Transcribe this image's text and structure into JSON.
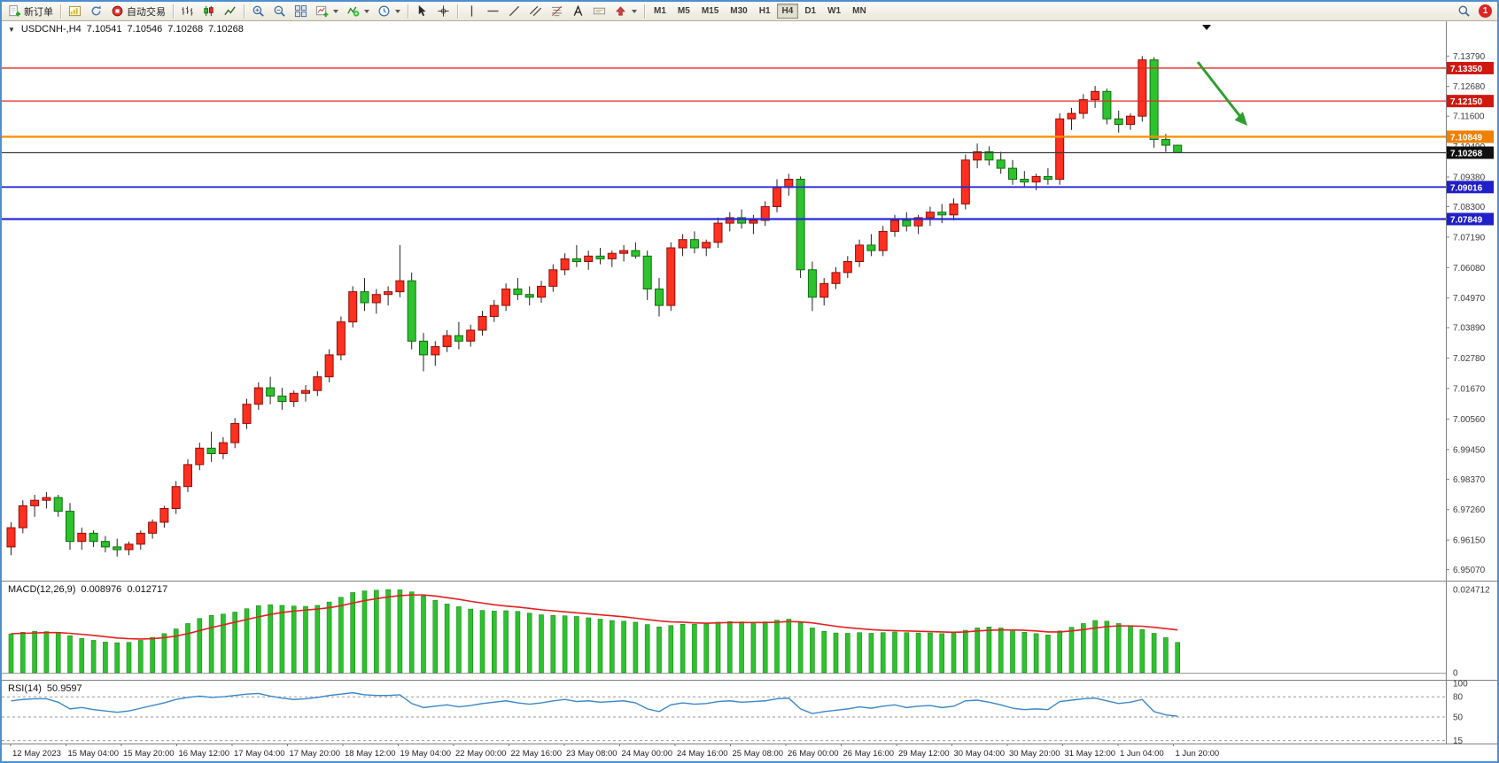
{
  "toolbar": {
    "new_order_label": "新订单",
    "autotrading_label": "自动交易",
    "timeframes": [
      "M1",
      "M5",
      "M15",
      "M30",
      "H1",
      "H4",
      "D1",
      "W1",
      "MN"
    ],
    "active_timeframe": "H4",
    "notification_count": "1",
    "icon_names": [
      "new-order-icon",
      "chart-window-icon",
      "refresh-icon",
      "autotrading-icon",
      "ohlc-bars-icon",
      "candlestick-icon",
      "line-chart-icon",
      "zoom-in-icon",
      "zoom-out-icon",
      "tile-windows-icon",
      "new-chart-icon",
      "indicators-icon",
      "period-clock-icon",
      "cursor-icon",
      "crosshair-icon",
      "vertical-line-icon",
      "horizontal-line-icon",
      "trendline-icon",
      "channel-icon",
      "fibonacci-icon",
      "text-icon",
      "label-icon",
      "arrows-icon",
      "search-icon"
    ]
  },
  "chart": {
    "collapse_glyph": "▼",
    "title": "USDCNH-,H4"
  },
  "chart_data": {
    "type": "candlestick",
    "symbol": "USDCNH-",
    "period": "H4",
    "ohlc_display": {
      "open": "7.10541",
      "high": "7.10546",
      "low": "7.10268",
      "close": "7.10268"
    },
    "bull_color": "#ff3020",
    "bear_color": "#2ec22e",
    "wick_color": "#222222",
    "price_ticks": [
      {
        "label": "7.13790",
        "value": 7.1379
      },
      {
        "label": "7.12680",
        "value": 7.1268
      },
      {
        "label": "7.11600",
        "value": 7.116
      },
      {
        "label": "7.10490",
        "value": 7.1049
      },
      {
        "label": "7.09380",
        "value": 7.0938
      },
      {
        "label": "7.08300",
        "value": 7.083
      },
      {
        "label": "7.07190",
        "value": 7.0719
      },
      {
        "label": "7.06080",
        "value": 7.0608
      },
      {
        "label": "7.04970",
        "value": 7.0497
      },
      {
        "label": "7.03890",
        "value": 7.0389
      },
      {
        "label": "7.02780",
        "value": 7.0278
      },
      {
        "label": "7.01670",
        "value": 7.0167
      },
      {
        "label": "7.00560",
        "value": 7.0056
      },
      {
        "label": "6.99450",
        "value": 6.9945
      },
      {
        "label": "6.98370",
        "value": 6.9837
      },
      {
        "label": "6.97260",
        "value": 6.9726
      },
      {
        "label": "6.96150",
        "value": 6.9615
      },
      {
        "label": "6.95070",
        "value": 6.9507
      }
    ],
    "levels": [
      {
        "label": "7.13350",
        "value": 7.1335,
        "color": "#e02a20",
        "tag_bg": "#d01810",
        "width": 1.3
      },
      {
        "label": "7.12150",
        "value": 7.1215,
        "color": "#e02a20",
        "tag_bg": "#d01810",
        "width": 1.3
      },
      {
        "label": "7.10849",
        "value": 7.10849,
        "color": "#ff8c00",
        "tag_bg": "#f08000",
        "width": 2.2
      },
      {
        "label": "7.10268",
        "value": 7.10268,
        "color": "#3c3c3c",
        "tag_bg": "#101010",
        "width": 1.2
      },
      {
        "label": "7.09016",
        "value": 7.09016,
        "color": "#2828d8",
        "tag_bg": "#2020c8",
        "width": 1.8
      },
      {
        "label": "7.07849",
        "value": 7.07849,
        "color": "#2828d8",
        "tag_bg": "#2020c8",
        "width": 2.2
      }
    ],
    "annotation_arrow": {
      "color": "#2f9e2f"
    },
    "candles": [
      [
        6.959,
        6.968,
        6.956,
        6.966
      ],
      [
        6.966,
        6.976,
        6.964,
        6.974
      ],
      [
        6.974,
        6.978,
        6.97,
        6.976
      ],
      [
        6.976,
        6.979,
        6.973,
        6.977
      ],
      [
        6.977,
        6.978,
        6.97,
        6.972
      ],
      [
        6.972,
        6.975,
        6.958,
        6.961
      ],
      [
        6.961,
        6.966,
        6.958,
        6.964
      ],
      [
        6.964,
        6.965,
        6.959,
        6.961
      ],
      [
        6.961,
        6.963,
        6.957,
        6.959
      ],
      [
        6.959,
        6.962,
        6.9555,
        6.958
      ],
      [
        6.958,
        6.961,
        6.956,
        6.96
      ],
      [
        6.96,
        6.965,
        6.958,
        6.964
      ],
      [
        6.964,
        6.969,
        6.962,
        6.968
      ],
      [
        6.968,
        6.974,
        6.966,
        6.973
      ],
      [
        6.973,
        6.983,
        6.971,
        6.981
      ],
      [
        6.981,
        6.991,
        6.979,
        6.989
      ],
      [
        6.989,
        6.997,
        6.987,
        6.995
      ],
      [
        6.995,
        7.001,
        6.99,
        6.993
      ],
      [
        6.993,
        6.999,
        6.991,
        6.997
      ],
      [
        6.997,
        7.006,
        6.995,
        7.004
      ],
      [
        7.004,
        7.013,
        7.002,
        7.011
      ],
      [
        7.011,
        7.019,
        7.009,
        7.017
      ],
      [
        7.017,
        7.021,
        7.011,
        7.014
      ],
      [
        7.014,
        7.017,
        7.009,
        7.012
      ],
      [
        7.012,
        7.016,
        7.01,
        7.015
      ],
      [
        7.015,
        7.018,
        7.012,
        7.016
      ],
      [
        7.016,
        7.023,
        7.014,
        7.021
      ],
      [
        7.021,
        7.031,
        7.019,
        7.029
      ],
      [
        7.029,
        7.043,
        7.027,
        7.041
      ],
      [
        7.041,
        7.054,
        7.039,
        7.052
      ],
      [
        7.052,
        7.057,
        7.045,
        7.048
      ],
      [
        7.048,
        7.053,
        7.044,
        7.051
      ],
      [
        7.051,
        7.054,
        7.047,
        7.052
      ],
      [
        7.052,
        7.069,
        7.05,
        7.056
      ],
      [
        7.056,
        7.059,
        7.031,
        7.034
      ],
      [
        7.034,
        7.037,
        7.023,
        7.029
      ],
      [
        7.029,
        7.034,
        7.025,
        7.032
      ],
      [
        7.032,
        7.038,
        7.03,
        7.036
      ],
      [
        7.036,
        7.041,
        7.031,
        7.034
      ],
      [
        7.034,
        7.04,
        7.032,
        7.038
      ],
      [
        7.038,
        7.045,
        7.036,
        7.043
      ],
      [
        7.043,
        7.049,
        7.041,
        7.047
      ],
      [
        7.047,
        7.055,
        7.045,
        7.053
      ],
      [
        7.053,
        7.057,
        7.049,
        7.051
      ],
      [
        7.051,
        7.054,
        7.047,
        7.05
      ],
      [
        7.05,
        7.056,
        7.048,
        7.054
      ],
      [
        7.054,
        7.062,
        7.052,
        7.06
      ],
      [
        7.06,
        7.066,
        7.058,
        7.064
      ],
      [
        7.064,
        7.069,
        7.061,
        7.063
      ],
      [
        7.063,
        7.067,
        7.06,
        7.065
      ],
      [
        7.065,
        7.068,
        7.062,
        7.064
      ],
      [
        7.064,
        7.067,
        7.061,
        7.066
      ],
      [
        7.066,
        7.069,
        7.063,
        7.067
      ],
      [
        7.067,
        7.07,
        7.064,
        7.065
      ],
      [
        7.065,
        7.067,
        7.049,
        7.053
      ],
      [
        7.053,
        7.057,
        7.043,
        7.047
      ],
      [
        7.047,
        7.07,
        7.045,
        7.068
      ],
      [
        7.068,
        7.073,
        7.065,
        7.071
      ],
      [
        7.071,
        7.074,
        7.066,
        7.068
      ],
      [
        7.068,
        7.071,
        7.065,
        7.07
      ],
      [
        7.07,
        7.079,
        7.068,
        7.077
      ],
      [
        7.077,
        7.081,
        7.074,
        7.079
      ],
      [
        7.079,
        7.082,
        7.075,
        7.077
      ],
      [
        7.077,
        7.08,
        7.073,
        7.078
      ],
      [
        7.078,
        7.085,
        7.076,
        7.083
      ],
      [
        7.083,
        7.093,
        7.081,
        7.09
      ],
      [
        7.09,
        7.095,
        7.087,
        7.093
      ],
      [
        7.093,
        7.094,
        7.057,
        7.06
      ],
      [
        7.06,
        7.063,
        7.045,
        7.05
      ],
      [
        7.05,
        7.057,
        7.047,
        7.055
      ],
      [
        7.055,
        7.061,
        7.053,
        7.059
      ],
      [
        7.059,
        7.065,
        7.057,
        7.063
      ],
      [
        7.063,
        7.071,
        7.061,
        7.069
      ],
      [
        7.069,
        7.073,
        7.065,
        7.067
      ],
      [
        7.067,
        7.076,
        7.065,
        7.074
      ],
      [
        7.074,
        7.08,
        7.072,
        7.078
      ],
      [
        7.078,
        7.081,
        7.074,
        7.076
      ],
      [
        7.076,
        7.08,
        7.073,
        7.079
      ],
      [
        7.079,
        7.083,
        7.076,
        7.081
      ],
      [
        7.081,
        7.084,
        7.077,
        7.08
      ],
      [
        7.08,
        7.086,
        7.078,
        7.084
      ],
      [
        7.084,
        7.102,
        7.082,
        7.1
      ],
      [
        7.1,
        7.106,
        7.097,
        7.103
      ],
      [
        7.103,
        7.105,
        7.098,
        7.1
      ],
      [
        7.1,
        7.103,
        7.095,
        7.097
      ],
      [
        7.097,
        7.1,
        7.091,
        7.093
      ],
      [
        7.093,
        7.096,
        7.09,
        7.092
      ],
      [
        7.092,
        7.095,
        7.089,
        7.094
      ],
      [
        7.094,
        7.097,
        7.091,
        7.093
      ],
      [
        7.093,
        7.117,
        7.091,
        7.115
      ],
      [
        7.115,
        7.119,
        7.111,
        7.117
      ],
      [
        7.117,
        7.124,
        7.115,
        7.122
      ],
      [
        7.122,
        7.127,
        7.119,
        7.125
      ],
      [
        7.125,
        7.126,
        7.113,
        7.115
      ],
      [
        7.115,
        7.118,
        7.11,
        7.113
      ],
      [
        7.113,
        7.117,
        7.111,
        7.116
      ],
      [
        7.116,
        7.1379,
        7.114,
        7.1365
      ],
      [
        7.1365,
        7.1375,
        7.1045,
        7.1075
      ],
      [
        7.1075,
        7.1095,
        7.103,
        7.1054
      ],
      [
        7.1054,
        7.1055,
        7.1027,
        7.1027
      ]
    ],
    "macd": {
      "label": "MACD(12,26,9)",
      "main_value": "0.008976",
      "signal_value": "0.012717",
      "axis_max_label": "0.024712",
      "axis_max": 0.024712,
      "axis_zero_label": "0",
      "hist_color": "#2ec22e",
      "signal_color": "#e02020",
      "histogram": [
        0.0115,
        0.012,
        0.0123,
        0.0122,
        0.0118,
        0.011,
        0.0102,
        0.0096,
        0.0091,
        0.0089,
        0.009,
        0.0096,
        0.0105,
        0.0116,
        0.013,
        0.0146,
        0.0161,
        0.017,
        0.0174,
        0.018,
        0.019,
        0.0199,
        0.0202,
        0.02,
        0.0198,
        0.0197,
        0.02,
        0.021,
        0.0224,
        0.0238,
        0.0243,
        0.0245,
        0.0247,
        0.0246,
        0.024,
        0.0228,
        0.0215,
        0.0204,
        0.0196,
        0.0189,
        0.0185,
        0.0183,
        0.0184,
        0.0182,
        0.0177,
        0.0172,
        0.017,
        0.0169,
        0.0167,
        0.0163,
        0.0159,
        0.0155,
        0.0153,
        0.015,
        0.0143,
        0.0136,
        0.014,
        0.0144,
        0.0144,
        0.0145,
        0.015,
        0.0152,
        0.0151,
        0.0149,
        0.0151,
        0.0156,
        0.0159,
        0.0148,
        0.0133,
        0.0123,
        0.0118,
        0.0117,
        0.0119,
        0.0117,
        0.0119,
        0.0121,
        0.0119,
        0.0118,
        0.0118,
        0.0116,
        0.0117,
        0.0126,
        0.0133,
        0.0136,
        0.0133,
        0.0127,
        0.012,
        0.0116,
        0.0112,
        0.0124,
        0.0135,
        0.0146,
        0.0155,
        0.0153,
        0.0146,
        0.0138,
        0.0128,
        0.0117,
        0.0104,
        0.009
      ],
      "signal": [
        0.0116,
        0.0117,
        0.0118,
        0.0119,
        0.0119,
        0.0117,
        0.0114,
        0.0111,
        0.0107,
        0.0103,
        0.0101,
        0.01,
        0.0101,
        0.0104,
        0.0109,
        0.0116,
        0.0125,
        0.0134,
        0.0142,
        0.015,
        0.0158,
        0.0166,
        0.0173,
        0.0179,
        0.0183,
        0.0186,
        0.0189,
        0.0193,
        0.0199,
        0.0207,
        0.0214,
        0.022,
        0.0225,
        0.0229,
        0.0231,
        0.0231,
        0.0228,
        0.0223,
        0.0218,
        0.0212,
        0.0207,
        0.0202,
        0.0198,
        0.0195,
        0.0191,
        0.0187,
        0.0184,
        0.0181,
        0.0178,
        0.0175,
        0.0172,
        0.0169,
        0.0166,
        0.0162,
        0.0158,
        0.0154,
        0.0151,
        0.015,
        0.0148,
        0.0147,
        0.0148,
        0.0149,
        0.0149,
        0.0149,
        0.0149,
        0.015,
        0.0152,
        0.0151,
        0.0148,
        0.0143,
        0.0138,
        0.0134,
        0.0131,
        0.0128,
        0.0126,
        0.0125,
        0.0124,
        0.0123,
        0.0122,
        0.0121,
        0.012,
        0.0121,
        0.0124,
        0.0126,
        0.0127,
        0.0127,
        0.0126,
        0.0124,
        0.0121,
        0.0121,
        0.0124,
        0.0128,
        0.0133,
        0.0137,
        0.0139,
        0.0139,
        0.0138,
        0.0135,
        0.0131,
        0.0127
      ]
    },
    "rsi": {
      "label": "RSI(14)",
      "value": "50.9597",
      "line_color": "#3a87c8",
      "levels": [
        {
          "label": "100",
          "value": 100,
          "dashed": false
        },
        {
          "label": "80",
          "value": 80,
          "dashed": true
        },
        {
          "label": "50",
          "value": 50,
          "dashed": true
        },
        {
          "label": "15",
          "value": 15,
          "dashed": true
        }
      ],
      "series": [
        74,
        76,
        77,
        77,
        72,
        62,
        64,
        61,
        59,
        57,
        59,
        63,
        67,
        71,
        76,
        79,
        81,
        79,
        80,
        82,
        84,
        85,
        81,
        78,
        76,
        77,
        79,
        82,
        84,
        86,
        83,
        82,
        82,
        83,
        70,
        64,
        66,
        68,
        65,
        67,
        70,
        72,
        74,
        71,
        69,
        71,
        74,
        76,
        73,
        74,
        72,
        73,
        74,
        71,
        62,
        58,
        68,
        71,
        69,
        70,
        73,
        74,
        72,
        73,
        74,
        77,
        78,
        62,
        55,
        58,
        60,
        62,
        65,
        63,
        66,
        68,
        64,
        66,
        67,
        64,
        66,
        74,
        75,
        72,
        68,
        63,
        61,
        62,
        61,
        73,
        75,
        77,
        78,
        74,
        70,
        72,
        76,
        58,
        53,
        51
      ]
    },
    "time_labels": [
      "12 May 2023",
      "15 May 04:00",
      "15 May 20:00",
      "16 May 12:00",
      "17 May 04:00",
      "17 May 20:00",
      "18 May 12:00",
      "19 May 04:00",
      "22 May 00:00",
      "22 May 16:00",
      "23 May 08:00",
      "24 May 00:00",
      "24 May 16:00",
      "25 May 08:00",
      "26 May 00:00",
      "26 May 16:00",
      "29 May 12:00",
      "30 May 04:00",
      "30 May 20:00",
      "31 May 12:00",
      "1 Jun 04:00",
      "1 Jun 20:00"
    ]
  }
}
